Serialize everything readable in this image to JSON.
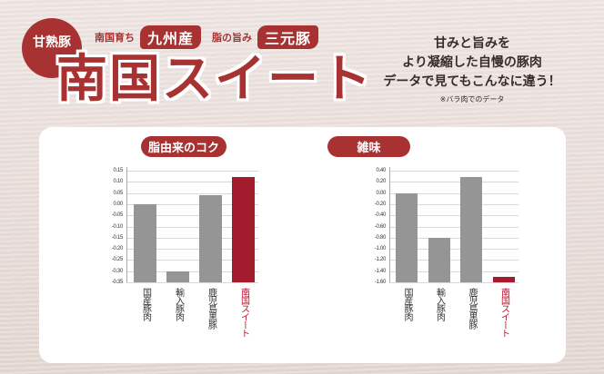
{
  "header": {
    "badge": "甘熟豚",
    "tagline": {
      "prefix1": "南国育ち",
      "pill1": "九州産",
      "prefix2": "脂の旨み",
      "pill2": "三元豚"
    },
    "title": "南国スイート",
    "copy": {
      "line1": "甘みと旨みを",
      "line2": "より凝縮した自慢の豚肉",
      "line3": "データで見てもこんなに違う！",
      "note": "※バラ肉でのデータ"
    }
  },
  "colors": {
    "brand": "#a83232",
    "bar_gray": "#959595",
    "bar_highlight": "#a31c2e"
  },
  "chart_data": [
    {
      "type": "bar",
      "title": "脂由来のコク",
      "categories": [
        "国産豚肉",
        "輸入豚肉",
        "鹿児島黒豚",
        "南国スイート"
      ],
      "values": [
        0.0,
        -0.3,
        0.04,
        0.12
      ],
      "highlight_index": 3,
      "ylim": [
        -0.35,
        0.15
      ],
      "yticks": [
        "0.15",
        "0.10",
        "0.05",
        "0.00",
        "-0.05",
        "-0.10",
        "-0.15",
        "-0.20",
        "-0.25",
        "-0.30",
        "-0.35"
      ],
      "xlabel": "",
      "ylabel": "",
      "grid": true
    },
    {
      "type": "bar",
      "title": "雑味",
      "categories": [
        "国産豚肉",
        "輸入豚肉",
        "鹿児島黒豚",
        "南国スイート"
      ],
      "values": [
        0.0,
        -0.8,
        0.28,
        -1.5
      ],
      "highlight_index": 3,
      "ylim": [
        -1.6,
        0.4
      ],
      "yticks": [
        "0.40",
        "0.20",
        "0.00",
        "-0.20",
        "-0.40",
        "-0.60",
        "-0.80",
        "-1.00",
        "-1.20",
        "-1.40",
        "-1.60"
      ],
      "xlabel": "",
      "ylabel": "",
      "grid": true
    }
  ]
}
